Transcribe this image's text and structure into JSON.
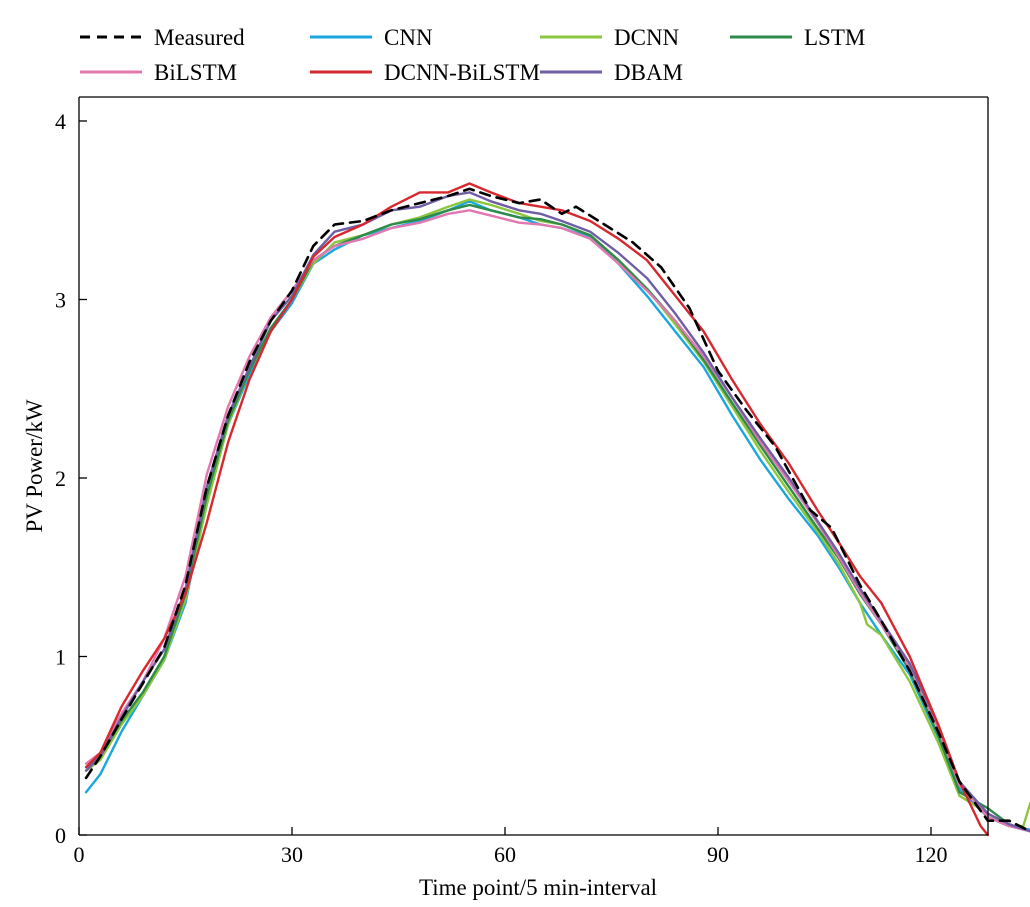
{
  "chart_data": {
    "type": "line",
    "title": "",
    "xlabel": "Time point/5 min-interval",
    "ylabel": "PV Power/kW",
    "xlim": [
      0,
      136
    ],
    "ylim": [
      0,
      4.1
    ],
    "xticks": [
      0,
      30,
      60,
      90,
      120
    ],
    "yticks": [
      0,
      1,
      2,
      3,
      4
    ],
    "grid": false,
    "legend_position": "top, above plot, 4 columns",
    "series": [
      {
        "name": "Measured",
        "color": "#000000",
        "dash": true,
        "points": [
          [
            1,
            0.32
          ],
          [
            3,
            0.44
          ],
          [
            6,
            0.65
          ],
          [
            9,
            0.85
          ],
          [
            12,
            1.05
          ],
          [
            15,
            1.4
          ],
          [
            18,
            1.95
          ],
          [
            21,
            2.35
          ],
          [
            24,
            2.65
          ],
          [
            27,
            2.88
          ],
          [
            30,
            3.05
          ],
          [
            33,
            3.3
          ],
          [
            36,
            3.42
          ],
          [
            40,
            3.44
          ],
          [
            44,
            3.5
          ],
          [
            48,
            3.54
          ],
          [
            52,
            3.58
          ],
          [
            55,
            3.62
          ],
          [
            58,
            3.58
          ],
          [
            62,
            3.54
          ],
          [
            65,
            3.56
          ],
          [
            68,
            3.48
          ],
          [
            70,
            3.52
          ],
          [
            74,
            3.42
          ],
          [
            78,
            3.32
          ],
          [
            82,
            3.18
          ],
          [
            86,
            2.95
          ],
          [
            90,
            2.6
          ],
          [
            94,
            2.38
          ],
          [
            98,
            2.18
          ],
          [
            103,
            1.82
          ],
          [
            106,
            1.72
          ],
          [
            110,
            1.4
          ],
          [
            113,
            1.2
          ],
          [
            117,
            0.92
          ],
          [
            121,
            0.58
          ],
          [
            124,
            0.3
          ],
          [
            128,
            0.08
          ],
          [
            131,
            0.08
          ],
          [
            134,
            0.02
          ]
        ]
      },
      {
        "name": "CNN",
        "color": "#1aa7df",
        "dash": false,
        "points": [
          [
            1,
            0.24
          ],
          [
            3,
            0.34
          ],
          [
            6,
            0.58
          ],
          [
            9,
            0.78
          ],
          [
            12,
            0.98
          ],
          [
            15,
            1.3
          ],
          [
            18,
            1.88
          ],
          [
            21,
            2.3
          ],
          [
            24,
            2.58
          ],
          [
            27,
            2.82
          ],
          [
            30,
            2.98
          ],
          [
            33,
            3.2
          ],
          [
            36,
            3.28
          ],
          [
            40,
            3.36
          ],
          [
            44,
            3.4
          ],
          [
            48,
            3.44
          ],
          [
            52,
            3.5
          ],
          [
            55,
            3.55
          ],
          [
            58,
            3.5
          ],
          [
            62,
            3.46
          ],
          [
            65,
            3.42
          ],
          [
            68,
            3.4
          ],
          [
            72,
            3.35
          ],
          [
            76,
            3.2
          ],
          [
            80,
            3.02
          ],
          [
            84,
            2.82
          ],
          [
            88,
            2.62
          ],
          [
            92,
            2.35
          ],
          [
            96,
            2.1
          ],
          [
            100,
            1.88
          ],
          [
            104,
            1.68
          ],
          [
            107,
            1.5
          ],
          [
            110,
            1.3
          ],
          [
            113,
            1.12
          ],
          [
            117,
            0.9
          ],
          [
            121,
            0.55
          ],
          [
            124,
            0.26
          ],
          [
            128,
            0.1
          ],
          [
            131,
            0.05
          ],
          [
            134,
            0.03
          ]
        ]
      },
      {
        "name": "DCNN",
        "color": "#8cc63f",
        "dash": false,
        "points": [
          [
            1,
            0.36
          ],
          [
            3,
            0.42
          ],
          [
            6,
            0.62
          ],
          [
            9,
            0.78
          ],
          [
            12,
            0.98
          ],
          [
            15,
            1.32
          ],
          [
            18,
            1.85
          ],
          [
            21,
            2.3
          ],
          [
            24,
            2.6
          ],
          [
            27,
            2.82
          ],
          [
            30,
            3.0
          ],
          [
            33,
            3.2
          ],
          [
            36,
            3.32
          ],
          [
            40,
            3.36
          ],
          [
            44,
            3.42
          ],
          [
            48,
            3.46
          ],
          [
            52,
            3.52
          ],
          [
            55,
            3.56
          ],
          [
            58,
            3.53
          ],
          [
            62,
            3.48
          ],
          [
            65,
            3.44
          ],
          [
            68,
            3.42
          ],
          [
            72,
            3.36
          ],
          [
            76,
            3.22
          ],
          [
            80,
            3.06
          ],
          [
            84,
            2.86
          ],
          [
            88,
            2.65
          ],
          [
            92,
            2.4
          ],
          [
            96,
            2.15
          ],
          [
            100,
            1.92
          ],
          [
            104,
            1.7
          ],
          [
            107,
            1.52
          ],
          [
            110,
            1.3
          ],
          [
            111,
            1.18
          ],
          [
            113,
            1.12
          ],
          [
            117,
            0.86
          ],
          [
            121,
            0.52
          ],
          [
            124,
            0.22
          ],
          [
            128,
            0.12
          ],
          [
            131,
            0.05
          ],
          [
            133,
            0.05
          ],
          [
            134,
            0.18
          ]
        ]
      },
      {
        "name": "LSTM",
        "color": "#2e8b4a",
        "dash": false,
        "points": [
          [
            1,
            0.38
          ],
          [
            3,
            0.44
          ],
          [
            6,
            0.64
          ],
          [
            9,
            0.8
          ],
          [
            12,
            1.0
          ],
          [
            15,
            1.35
          ],
          [
            18,
            1.9
          ],
          [
            21,
            2.32
          ],
          [
            24,
            2.6
          ],
          [
            27,
            2.84
          ],
          [
            30,
            3.0
          ],
          [
            33,
            3.22
          ],
          [
            36,
            3.3
          ],
          [
            40,
            3.36
          ],
          [
            44,
            3.42
          ],
          [
            48,
            3.45
          ],
          [
            52,
            3.5
          ],
          [
            55,
            3.53
          ],
          [
            58,
            3.5
          ],
          [
            62,
            3.46
          ],
          [
            65,
            3.45
          ],
          [
            68,
            3.42
          ],
          [
            72,
            3.36
          ],
          [
            76,
            3.22
          ],
          [
            80,
            3.06
          ],
          [
            84,
            2.88
          ],
          [
            88,
            2.66
          ],
          [
            92,
            2.42
          ],
          [
            96,
            2.18
          ],
          [
            100,
            1.95
          ],
          [
            104,
            1.72
          ],
          [
            107,
            1.55
          ],
          [
            110,
            1.35
          ],
          [
            113,
            1.18
          ],
          [
            117,
            0.92
          ],
          [
            121,
            0.56
          ],
          [
            124,
            0.24
          ],
          [
            128,
            0.15
          ],
          [
            131,
            0.06
          ],
          [
            134,
            0.02
          ]
        ]
      },
      {
        "name": "BiLSTM",
        "color": "#e377b0",
        "dash": false,
        "points": [
          [
            1,
            0.4
          ],
          [
            3,
            0.46
          ],
          [
            6,
            0.68
          ],
          [
            9,
            0.86
          ],
          [
            12,
            1.1
          ],
          [
            15,
            1.45
          ],
          [
            18,
            2.02
          ],
          [
            21,
            2.4
          ],
          [
            24,
            2.68
          ],
          [
            27,
            2.9
          ],
          [
            30,
            3.05
          ],
          [
            33,
            3.22
          ],
          [
            36,
            3.3
          ],
          [
            40,
            3.34
          ],
          [
            44,
            3.4
          ],
          [
            48,
            3.43
          ],
          [
            52,
            3.48
          ],
          [
            55,
            3.5
          ],
          [
            58,
            3.47
          ],
          [
            62,
            3.43
          ],
          [
            65,
            3.42
          ],
          [
            68,
            3.4
          ],
          [
            72,
            3.34
          ],
          [
            76,
            3.2
          ],
          [
            80,
            3.05
          ],
          [
            84,
            2.88
          ],
          [
            88,
            2.68
          ],
          [
            92,
            2.45
          ],
          [
            96,
            2.2
          ],
          [
            100,
            1.98
          ],
          [
            104,
            1.75
          ],
          [
            107,
            1.56
          ],
          [
            110,
            1.36
          ],
          [
            113,
            1.18
          ],
          [
            117,
            0.94
          ],
          [
            121,
            0.6
          ],
          [
            124,
            0.28
          ],
          [
            128,
            0.1
          ],
          [
            131,
            0.05
          ],
          [
            134,
            0.02
          ]
        ]
      },
      {
        "name": "DCNN-BiLSTM",
        "color": "#d7282f",
        "dash": false,
        "points": [
          [
            1,
            0.38
          ],
          [
            3,
            0.46
          ],
          [
            6,
            0.72
          ],
          [
            9,
            0.92
          ],
          [
            12,
            1.1
          ],
          [
            15,
            1.35
          ],
          [
            18,
            1.75
          ],
          [
            21,
            2.2
          ],
          [
            24,
            2.55
          ],
          [
            27,
            2.82
          ],
          [
            30,
            3.0
          ],
          [
            33,
            3.24
          ],
          [
            36,
            3.35
          ],
          [
            40,
            3.42
          ],
          [
            44,
            3.52
          ],
          [
            48,
            3.6
          ],
          [
            52,
            3.6
          ],
          [
            55,
            3.65
          ],
          [
            58,
            3.6
          ],
          [
            62,
            3.54
          ],
          [
            65,
            3.52
          ],
          [
            68,
            3.5
          ],
          [
            72,
            3.44
          ],
          [
            76,
            3.34
          ],
          [
            80,
            3.22
          ],
          [
            84,
            3.02
          ],
          [
            88,
            2.82
          ],
          [
            92,
            2.55
          ],
          [
            96,
            2.3
          ],
          [
            100,
            2.08
          ],
          [
            104,
            1.82
          ],
          [
            107,
            1.64
          ],
          [
            110,
            1.45
          ],
          [
            113,
            1.3
          ],
          [
            117,
            1.0
          ],
          [
            121,
            0.62
          ],
          [
            124,
            0.3
          ],
          [
            127,
            0.05
          ],
          [
            128,
            0.0
          ]
        ]
      },
      {
        "name": "DBAM",
        "color": "#6f5ea6",
        "dash": false,
        "points": [
          [
            1,
            0.36
          ],
          [
            3,
            0.44
          ],
          [
            6,
            0.66
          ],
          [
            9,
            0.86
          ],
          [
            12,
            1.04
          ],
          [
            15,
            1.38
          ],
          [
            18,
            1.95
          ],
          [
            21,
            2.35
          ],
          [
            24,
            2.62
          ],
          [
            27,
            2.88
          ],
          [
            30,
            3.02
          ],
          [
            33,
            3.25
          ],
          [
            36,
            3.38
          ],
          [
            40,
            3.42
          ],
          [
            44,
            3.5
          ],
          [
            48,
            3.52
          ],
          [
            52,
            3.58
          ],
          [
            55,
            3.6
          ],
          [
            58,
            3.55
          ],
          [
            62,
            3.5
          ],
          [
            65,
            3.48
          ],
          [
            68,
            3.44
          ],
          [
            72,
            3.38
          ],
          [
            76,
            3.26
          ],
          [
            80,
            3.12
          ],
          [
            84,
            2.92
          ],
          [
            88,
            2.7
          ],
          [
            92,
            2.45
          ],
          [
            96,
            2.22
          ],
          [
            100,
            2.0
          ],
          [
            104,
            1.76
          ],
          [
            107,
            1.58
          ],
          [
            110,
            1.38
          ],
          [
            113,
            1.2
          ],
          [
            117,
            0.96
          ],
          [
            121,
            0.62
          ],
          [
            124,
            0.3
          ],
          [
            128,
            0.12
          ],
          [
            131,
            0.06
          ],
          [
            134,
            0.02
          ]
        ]
      }
    ]
  }
}
